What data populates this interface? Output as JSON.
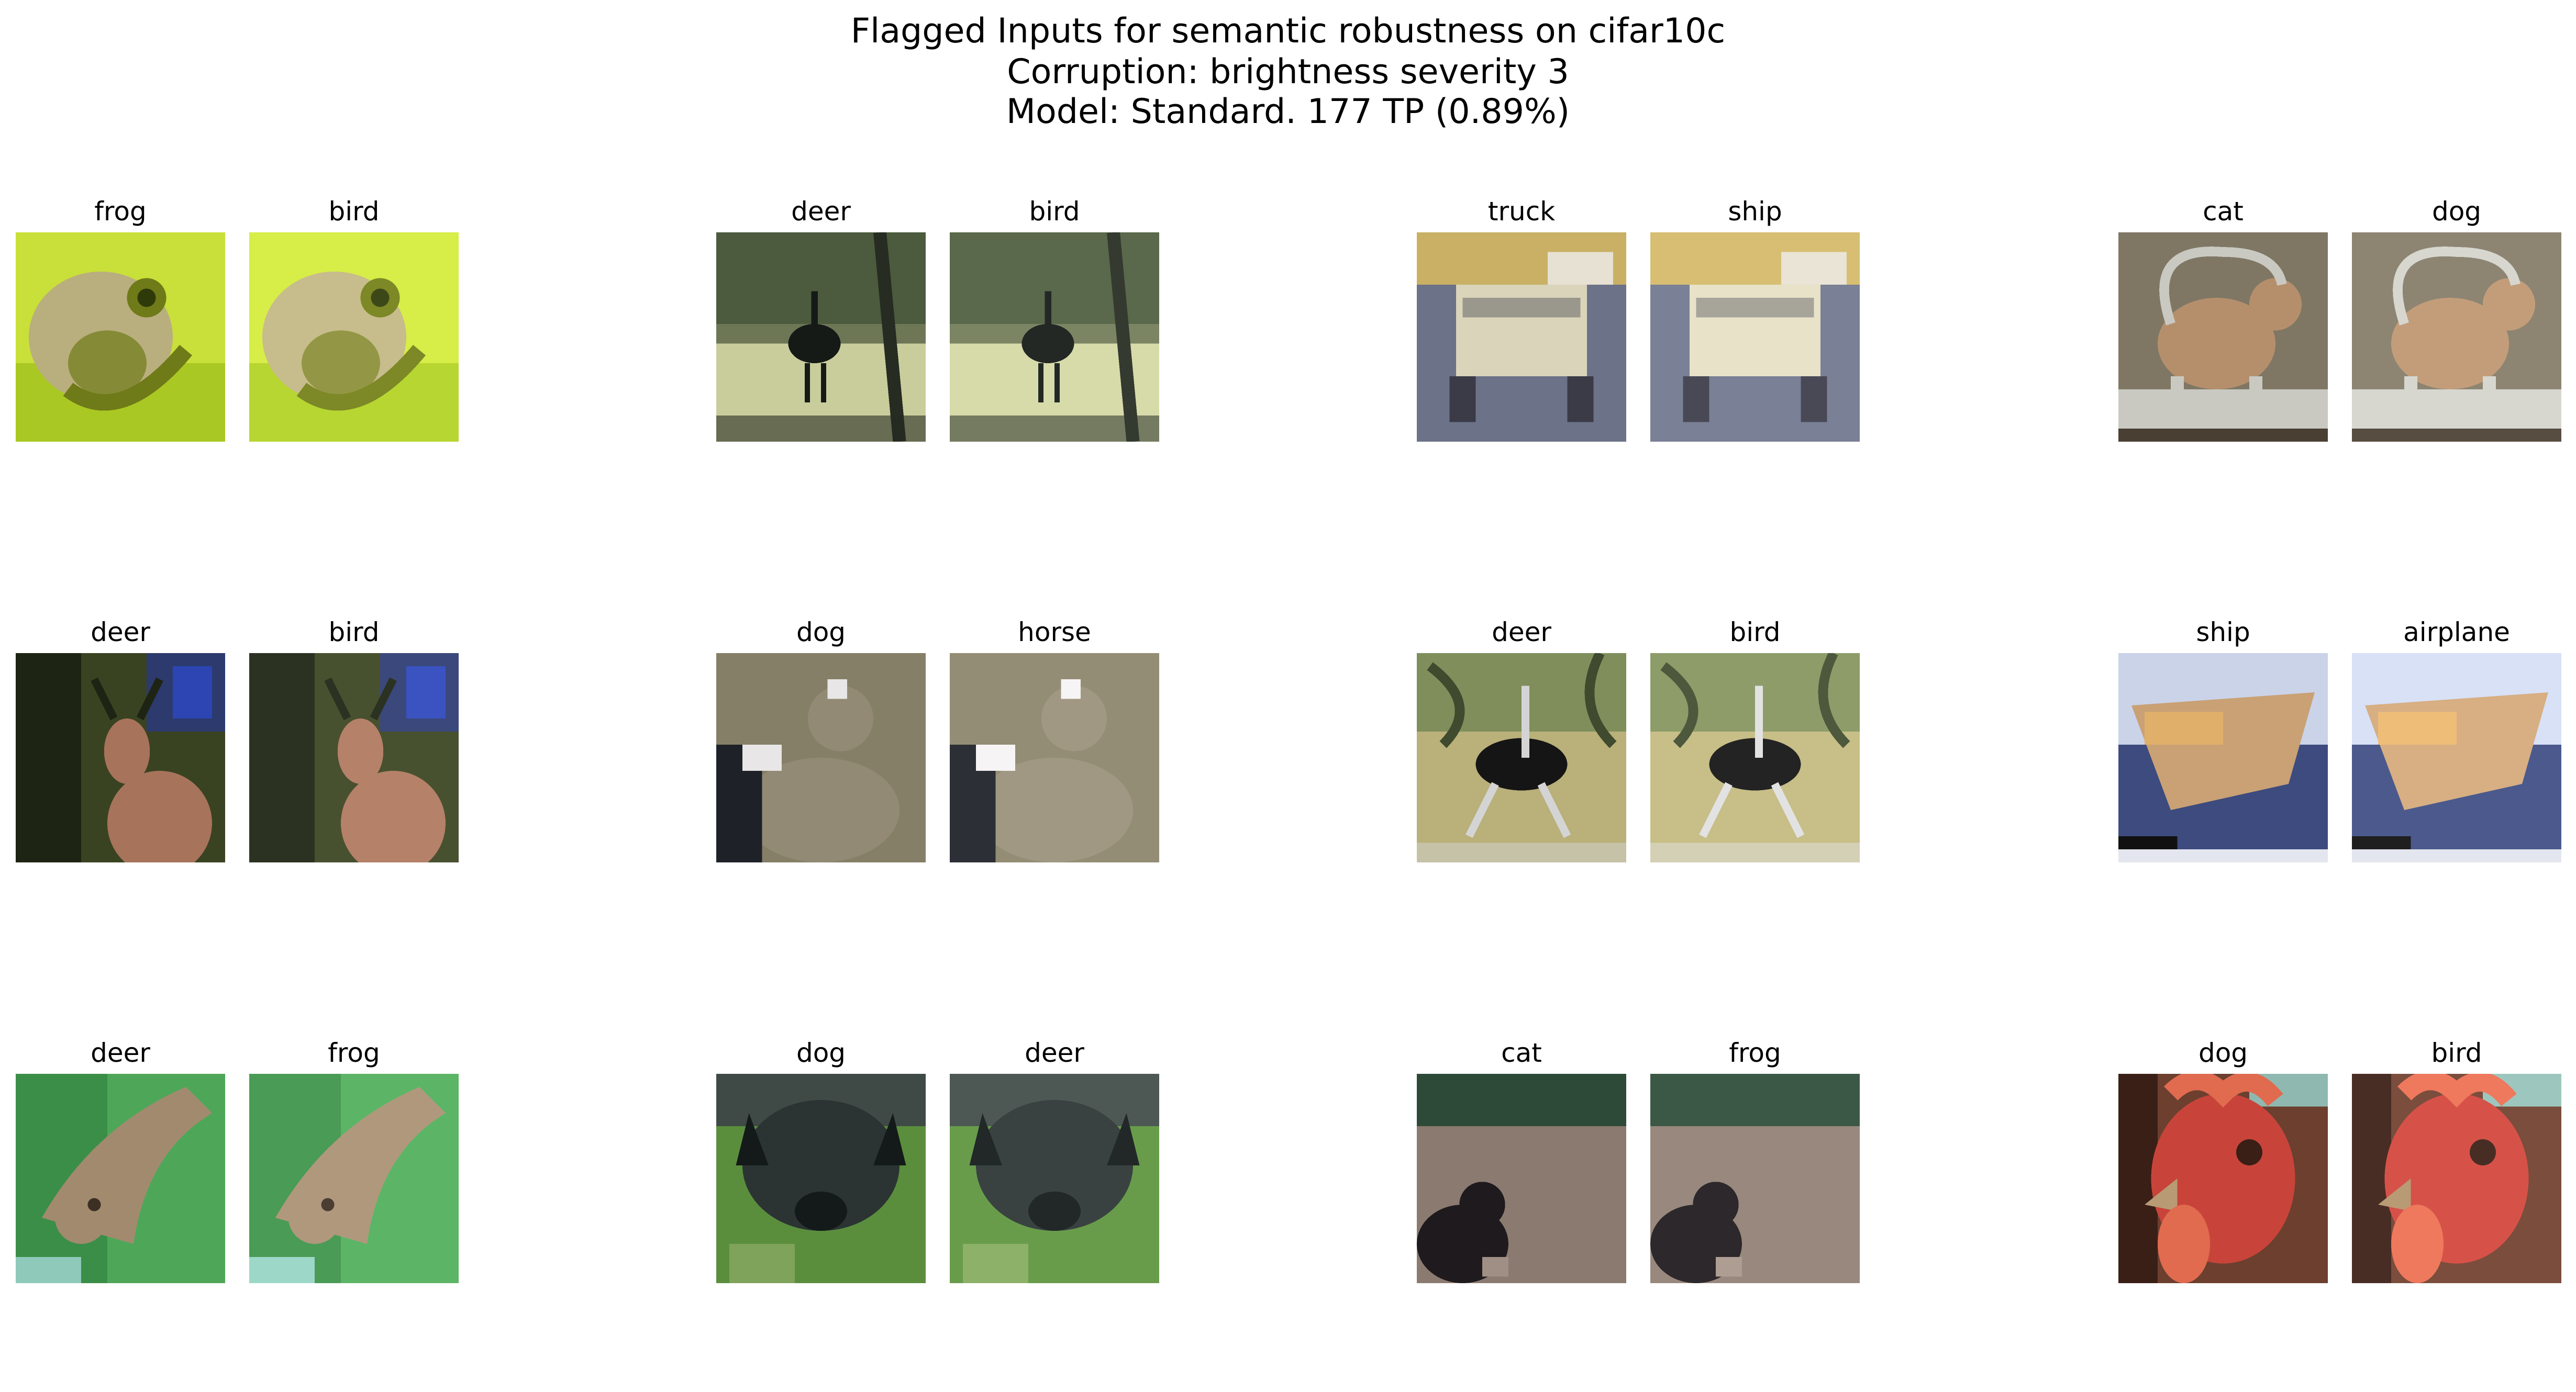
{
  "header": {
    "line1": "Flagged Inputs for semantic robustness on cifar10c",
    "line2": "Corruption: brightness severity 3",
    "line3": "Model: Standard. 177 TP (0.89%)"
  },
  "pairs": [
    {
      "row": 0,
      "col": 0,
      "left_label": "frog",
      "right_label": "bird",
      "scene": "frog",
      "palette": {
        "bg": "#c9df3a",
        "bg2": "#a9c823",
        "main": "#b9ae7e",
        "accent": "#6f7a18",
        "dark": "#2f3a0a"
      }
    },
    {
      "row": 0,
      "col": 1,
      "left_label": "deer",
      "right_label": "bird",
      "scene": "ostrich",
      "palette": {
        "bg": "#4c5a3d",
        "bg2": "#c9cd9c",
        "main": "#151a17",
        "accent": "#6d7756",
        "dark": "#262c22"
      }
    },
    {
      "row": 0,
      "col": 2,
      "left_label": "truck",
      "right_label": "ship",
      "scene": "truck",
      "palette": {
        "bg": "#8e96ae",
        "bg2": "#6c7287",
        "main": "#d9d4ba",
        "accent": "#c9b064",
        "dark": "#3b3b48"
      }
    },
    {
      "row": 0,
      "col": 3,
      "left_label": "cat",
      "right_label": "dog",
      "scene": "cat",
      "palette": {
        "bg": "#7f7764",
        "bg2": "#a8a392",
        "main": "#b58f6c",
        "accent": "#c9c9c2",
        "dark": "#4a3f33"
      }
    },
    {
      "row": 1,
      "col": 0,
      "left_label": "deer",
      "right_label": "bird",
      "scene": "deer",
      "palette": {
        "bg": "#3a4321",
        "bg2": "#2d3a6d",
        "main": "#a7735b",
        "accent": "#2c45b3",
        "dark": "#1d2413"
      }
    },
    {
      "row": 1,
      "col": 1,
      "left_label": "dog",
      "right_label": "horse",
      "scene": "dog-white",
      "palette": {
        "bg": "#6d6b56",
        "bg2": "#a09478",
        "main": "#928a74",
        "accent": "#e8e6e6",
        "dark": "#1e2228"
      }
    },
    {
      "row": 1,
      "col": 2,
      "left_label": "deer",
      "right_label": "bird",
      "scene": "ostrich2",
      "palette": {
        "bg": "#7f8e5b",
        "bg2": "#b9b07a",
        "main": "#151515",
        "accent": "#d4d4d4",
        "dark": "#3f4a2e"
      }
    },
    {
      "row": 1,
      "col": 3,
      "left_label": "ship",
      "right_label": "airplane",
      "scene": "boat",
      "palette": {
        "bg": "#cad3e8",
        "bg2": "#3d4b7e",
        "main": "#c9a175",
        "accent": "#e0b06a",
        "dark": "#111111"
      }
    },
    {
      "row": 2,
      "col": 0,
      "left_label": "deer",
      "right_label": "frog",
      "scene": "fawn",
      "palette": {
        "bg": "#4ea758",
        "bg2": "#2f7d3c",
        "main": "#a28a6f",
        "accent": "#8fc9b9",
        "dark": "#3c3024"
      }
    },
    {
      "row": 2,
      "col": 1,
      "left_label": "dog",
      "right_label": "deer",
      "scene": "black-dog",
      "palette": {
        "bg": "#5a8e3d",
        "bg2": "#3f4a46",
        "main": "#2b3432",
        "accent": "#7fa35a",
        "dark": "#141a19"
      }
    },
    {
      "row": 2,
      "col": 2,
      "left_label": "cat",
      "right_label": "frog",
      "scene": "cat-ground",
      "palette": {
        "bg": "#8b7a70",
        "bg2": "#2d4a38",
        "main": "#1e1a1d",
        "accent": "#a08f85",
        "dark": "#0f0d0f"
      }
    },
    {
      "row": 2,
      "col": 3,
      "left_label": "dog",
      "right_label": "bird",
      "scene": "rooster",
      "palette": {
        "bg": "#6c3f2f",
        "bg2": "#8fb9b0",
        "main": "#c8443a",
        "accent": "#e06b4f",
        "dark": "#3a1f17"
      }
    }
  ]
}
